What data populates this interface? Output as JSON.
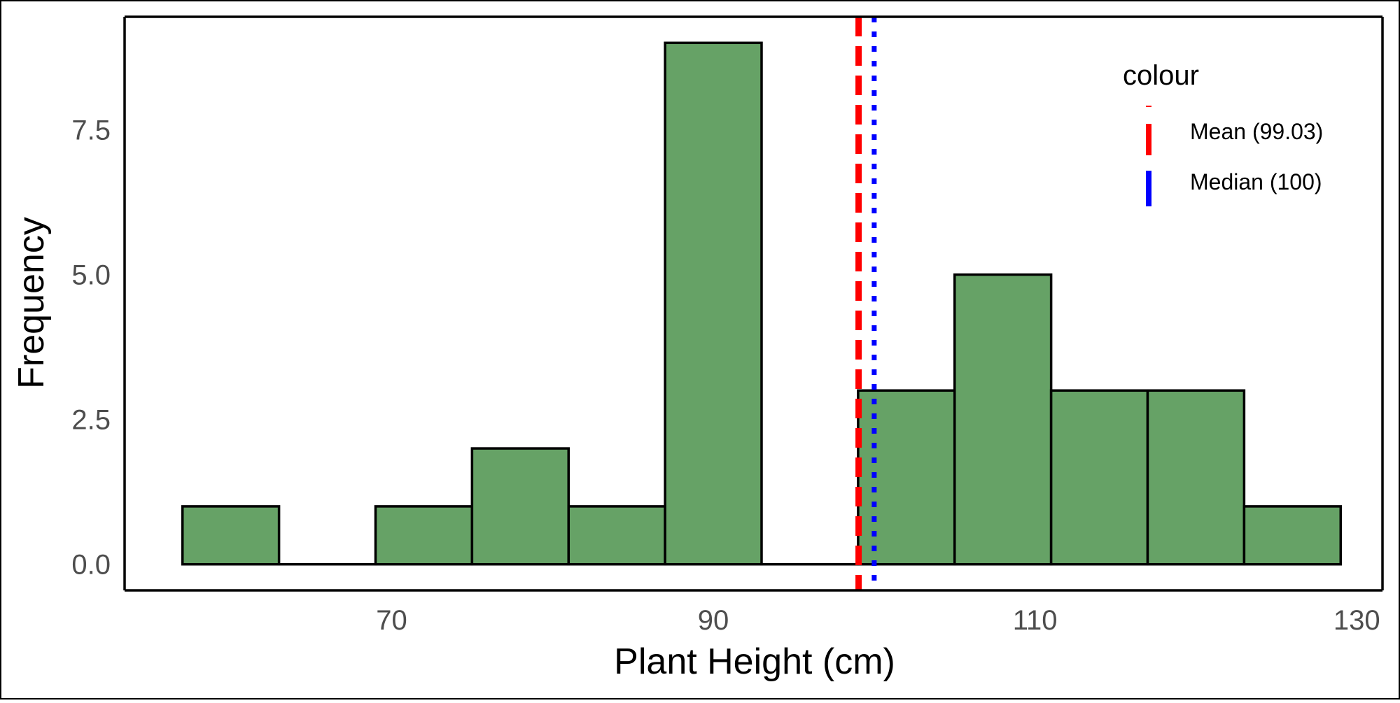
{
  "chart_data": {
    "type": "bar",
    "title": "",
    "xlabel": "Plant Height (cm)",
    "ylabel": "Frequency",
    "bins": [
      {
        "start": 57,
        "end": 63,
        "count": 1
      },
      {
        "start": 63,
        "end": 69,
        "count": 0
      },
      {
        "start": 69,
        "end": 75,
        "count": 1
      },
      {
        "start": 75,
        "end": 81,
        "count": 2
      },
      {
        "start": 81,
        "end": 87,
        "count": 1
      },
      {
        "start": 87,
        "end": 93,
        "count": 9
      },
      {
        "start": 93,
        "end": 99,
        "count": 0
      },
      {
        "start": 99,
        "end": 105,
        "count": 3
      },
      {
        "start": 105,
        "end": 111,
        "count": 5
      },
      {
        "start": 111,
        "end": 117,
        "count": 3
      },
      {
        "start": 117,
        "end": 123,
        "count": 3
      },
      {
        "start": 123,
        "end": 129,
        "count": 1
      }
    ],
    "xlim": [
      53.4,
      131.6
    ],
    "ylim": [
      -0.45,
      9.45
    ],
    "x_ticks": [
      70,
      90,
      110,
      130
    ],
    "x_tick_labels": [
      "70",
      "90",
      "110",
      "130"
    ],
    "y_ticks": [
      0,
      2.5,
      5,
      7.5
    ],
    "y_tick_labels": [
      "0.0",
      "2.5",
      "5.0",
      "7.5"
    ],
    "bar_fill": "#66a266",
    "bar_outline": "#000000",
    "reference_lines": [
      {
        "label": "Mean (99.03)",
        "value": 99.03,
        "color": "#ff0000",
        "style": "dashed"
      },
      {
        "label": "Median (100)",
        "value": 100,
        "color": "#0000ff",
        "style": "dotted"
      }
    ],
    "legend": {
      "title": "colour",
      "placement": "top-right",
      "entries": [
        "Mean (99.03)",
        "Median (100)"
      ]
    },
    "grid": false
  }
}
